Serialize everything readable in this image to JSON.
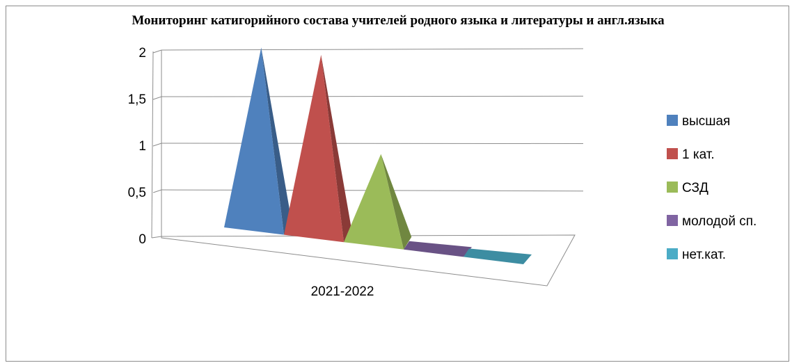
{
  "chart_data": {
    "type": "bar",
    "shape": "pyramid-3d",
    "title": "Мониторинг  катигорийного состава учителей родного языка и литературы и англ.языка",
    "categories": [
      "2021-2022"
    ],
    "series": [
      {
        "name": "высшая",
        "values": [
          2
        ],
        "color": "#4f81bd"
      },
      {
        "name": "1 кат.",
        "values": [
          2
        ],
        "color": "#c0504d"
      },
      {
        "name": "СЗД",
        "values": [
          1
        ],
        "color": "#9bbb59"
      },
      {
        "name": "молодой сп.",
        "values": [
          0
        ],
        "color": "#8064a2"
      },
      {
        "name": "нет.кат.",
        "values": [
          0
        ],
        "color": "#4bacc6"
      }
    ],
    "ylim": [
      0,
      2
    ],
    "yticks": [
      "0",
      "0,5",
      "1",
      "1,5",
      "2"
    ],
    "grid": true,
    "legend": "right"
  }
}
